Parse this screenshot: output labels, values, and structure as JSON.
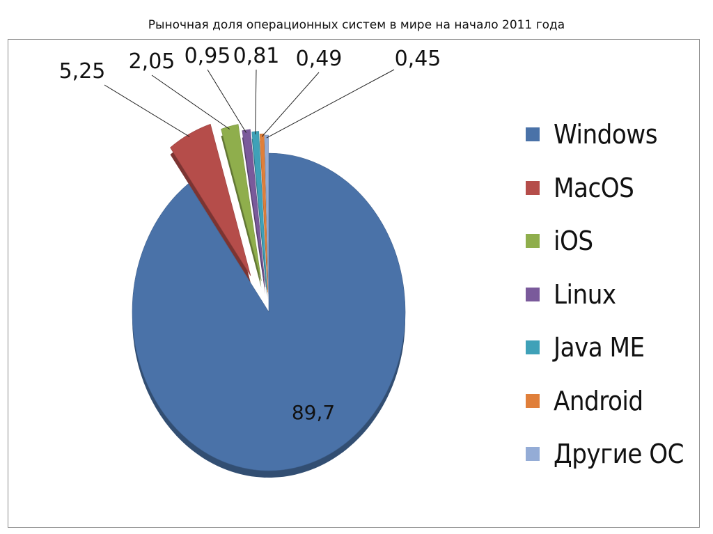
{
  "title": "Рыночная доля операционных систем в мире на начало 2011 года",
  "chart_data": {
    "type": "pie",
    "title": "Рыночная доля операционных систем в мире на начало 2011 года",
    "legend_position": "right",
    "exploded": true,
    "series": [
      {
        "name": "Windows",
        "value": 89.7,
        "label": "89,7",
        "color": "#4a72a8"
      },
      {
        "name": "MacOS",
        "value": 5.25,
        "label": "5,25",
        "color": "#b54d4a"
      },
      {
        "name": "iOS",
        "value": 2.05,
        "label": "2,05",
        "color": "#8fae4c"
      },
      {
        "name": "Linux",
        "value": 0.95,
        "label": "0,95",
        "color": "#7a5a9b"
      },
      {
        "name": "Java ME",
        "value": 0.81,
        "label": "0,81",
        "color": "#3fa1b8"
      },
      {
        "name": "Android",
        "value": 0.49,
        "label": "0,49",
        "color": "#e07f3a"
      },
      {
        "name": "Другие ОС",
        "value": 0.45,
        "label": "0,45",
        "color": "#94acd6"
      }
    ]
  }
}
